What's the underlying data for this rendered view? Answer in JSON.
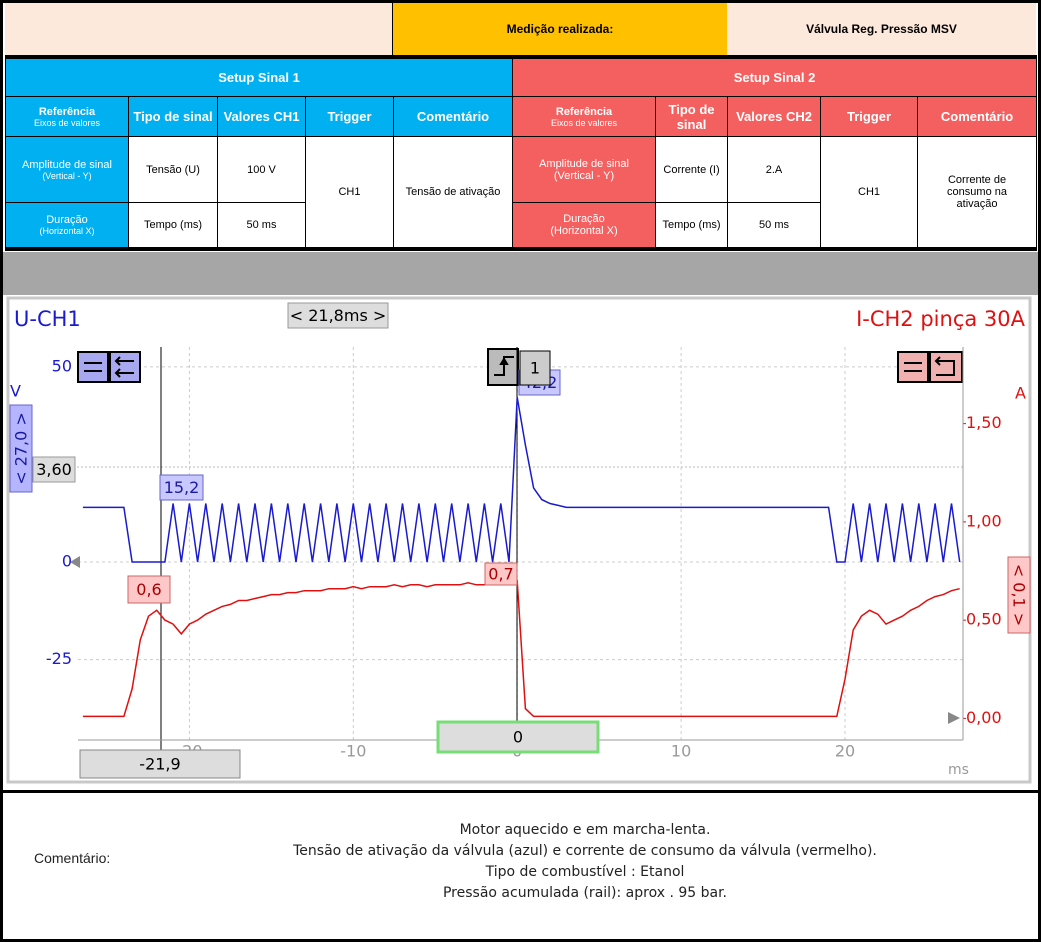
{
  "header": {
    "measured_label": "Medição realizada:",
    "measured_value": "Válvula Reg. Pressão MSV"
  },
  "setup": [
    {
      "title": "Setup Sinal 1",
      "headers": {
        "reference": "Referência",
        "reference_sub": "Eixos de valores",
        "signal_type": "Tipo de sinal",
        "values": "Valores CH1",
        "trigger": "Trigger",
        "comment": "Comentário"
      },
      "rows": [
        {
          "name": "Amplitude de sinal",
          "sub": "(Vertical - Y)",
          "signal_type": "Tensão (U)",
          "value": "100 V"
        },
        {
          "name": "Duração",
          "sub": "(Horizontal X)",
          "signal_type": "Tempo (ms)",
          "value": "50 ms"
        }
      ],
      "trigger": "CH1",
      "comment": "Tensão de ativação"
    },
    {
      "title": "Setup Sinal 2",
      "headers": {
        "reference": "Referência",
        "reference_sub": "Eixos de valores",
        "signal_type": "Tipo de sinal",
        "values": "Valores CH2",
        "trigger": "Trigger",
        "comment": "Comentário"
      },
      "rows": [
        {
          "name": "Amplitude de sinal",
          "sub": "(Vertical - Y)",
          "signal_type": "Corrente (I)",
          "value": "2.A"
        },
        {
          "name": "Duração",
          "sub": "(Horizontal X)",
          "signal_type": "Tempo (ms)",
          "value": "50 ms"
        }
      ],
      "trigger": "CH1",
      "comment": "Corrente de consumo na ativação"
    }
  ],
  "chart_data": {
    "type": "line",
    "y_label": "V",
    "y2_label": "A",
    "x_label": "ms",
    "grid": true,
    "xlim": [
      -26.8,
      27.2
    ],
    "xticks": [
      -20,
      -10,
      0,
      10,
      20
    ],
    "ylim": [
      -45.6,
      55.1
    ],
    "yticks": [
      50,
      0,
      -25
    ],
    "y2lim": [
      -0.11,
      1.89
    ],
    "y2ticks": [
      {
        "value": 1.5,
        "label": "1,50"
      },
      {
        "value": 1,
        "label": "1,00"
      },
      {
        "value": 0.5,
        "label": "0,50"
      },
      {
        "value": 0,
        "label": "0,00"
      }
    ],
    "x": [
      -26.5,
      -26,
      -25.5,
      -25,
      -24.5,
      -24,
      -23.5,
      -23,
      -22.5,
      -22,
      -21.5,
      -21,
      -20.5,
      -20,
      -19.5,
      -19,
      -18.5,
      -18,
      -17.5,
      -17,
      -16.5,
      -16,
      -15.5,
      -15,
      -14.5,
      -14,
      -13.5,
      -13,
      -12.5,
      -12,
      -11.5,
      -11,
      -10.5,
      -10,
      -9.5,
      -9,
      -8.5,
      -8,
      -7.5,
      -7,
      -6.5,
      -6,
      -5.5,
      -5,
      -4.5,
      -4,
      -3.5,
      -3,
      -2.5,
      -2,
      -1.5,
      -1,
      -0.5,
      0,
      0.5,
      1,
      1.5,
      2,
      2.5,
      3,
      3.5,
      4,
      4.5,
      5,
      5.5,
      6,
      6.5,
      7,
      7.5,
      8,
      8.5,
      9,
      9.5,
      10,
      10.5,
      11,
      11.5,
      12,
      12.5,
      13,
      13.5,
      14,
      14.5,
      15,
      15.5,
      16,
      16.5,
      17,
      17.5,
      18,
      18.5,
      19,
      19.5,
      20,
      20.5,
      21,
      21.5,
      22,
      22.5,
      23,
      23.5,
      24,
      24.5,
      25,
      25.5,
      26,
      26.5,
      27
    ],
    "series": [
      {
        "name": "U-CH1",
        "color": "#1a1ad0",
        "axis": "y",
        "values": [
          14,
          14,
          14,
          14,
          14,
          14,
          0,
          0,
          0,
          0,
          0,
          15,
          0,
          15,
          0,
          15,
          0,
          15,
          0,
          15,
          0,
          15,
          0,
          15,
          0,
          15,
          0,
          15,
          0,
          15,
          0,
          15,
          0,
          15,
          0,
          15,
          0,
          15,
          0,
          15,
          0,
          15,
          0,
          15,
          0,
          15,
          0,
          15,
          0,
          15,
          0,
          15,
          0,
          42.2,
          30,
          19,
          16,
          15,
          14.5,
          14,
          14,
          14,
          14,
          14,
          14,
          14,
          14,
          14,
          14,
          14,
          14,
          14,
          14,
          14,
          14,
          14,
          14,
          14,
          14,
          14,
          14,
          14,
          14,
          14,
          14,
          14,
          14,
          14,
          14,
          14,
          14,
          14,
          0,
          0,
          15,
          0,
          15,
          0,
          15,
          0,
          15,
          0,
          15,
          0,
          15,
          0,
          15,
          0
        ]
      },
      {
        "name": "I-CH2 pinça 30A",
        "color": "#e01010",
        "axis": "y2",
        "values": [
          0.01,
          0.01,
          0.01,
          0.01,
          0.01,
          0.01,
          0.15,
          0.4,
          0.52,
          0.55,
          0.5,
          0.48,
          0.43,
          0.48,
          0.5,
          0.53,
          0.55,
          0.57,
          0.58,
          0.6,
          0.6,
          0.61,
          0.62,
          0.63,
          0.63,
          0.64,
          0.64,
          0.65,
          0.65,
          0.65,
          0.66,
          0.66,
          0.66,
          0.67,
          0.66,
          0.67,
          0.67,
          0.67,
          0.68,
          0.67,
          0.68,
          0.68,
          0.67,
          0.68,
          0.68,
          0.68,
          0.68,
          0.69,
          0.68,
          0.68,
          0.69,
          0.68,
          0.68,
          0.7,
          0.05,
          0.01,
          0.01,
          0.01,
          0.01,
          0.01,
          0.01,
          0.01,
          0.01,
          0.01,
          0.01,
          0.01,
          0.01,
          0.01,
          0.01,
          0.01,
          0.01,
          0.01,
          0.01,
          0.01,
          0.01,
          0.01,
          0.01,
          0.01,
          0.01,
          0.01,
          0.01,
          0.01,
          0.01,
          0.01,
          0.01,
          0.01,
          0.01,
          0.01,
          0.01,
          0.01,
          0.01,
          0.01,
          0.01,
          0.2,
          0.45,
          0.52,
          0.55,
          0.53,
          0.48,
          0.5,
          0.52,
          0.55,
          0.57,
          0.6,
          0.62,
          0.63,
          0.65,
          0.66
        ]
      }
    ],
    "annotations": [
      "< 21,8ms >",
      "< 27,0 >",
      "3,60",
      "15,2",
      "42,2",
      "0,6",
      "0,7",
      "< 0,1 >",
      "-21,9",
      "0",
      "1"
    ]
  },
  "comment": {
    "label": "Comentário:",
    "lines": [
      "Motor aquecido e em marcha-lenta.",
      "Tensão de ativação da válvula (azul) e corrente de consumo da válvula (vermelho).",
      "Tipo de combustível : Etanol",
      "Pressão acumulada (rail): aprox . 95 bar."
    ]
  }
}
